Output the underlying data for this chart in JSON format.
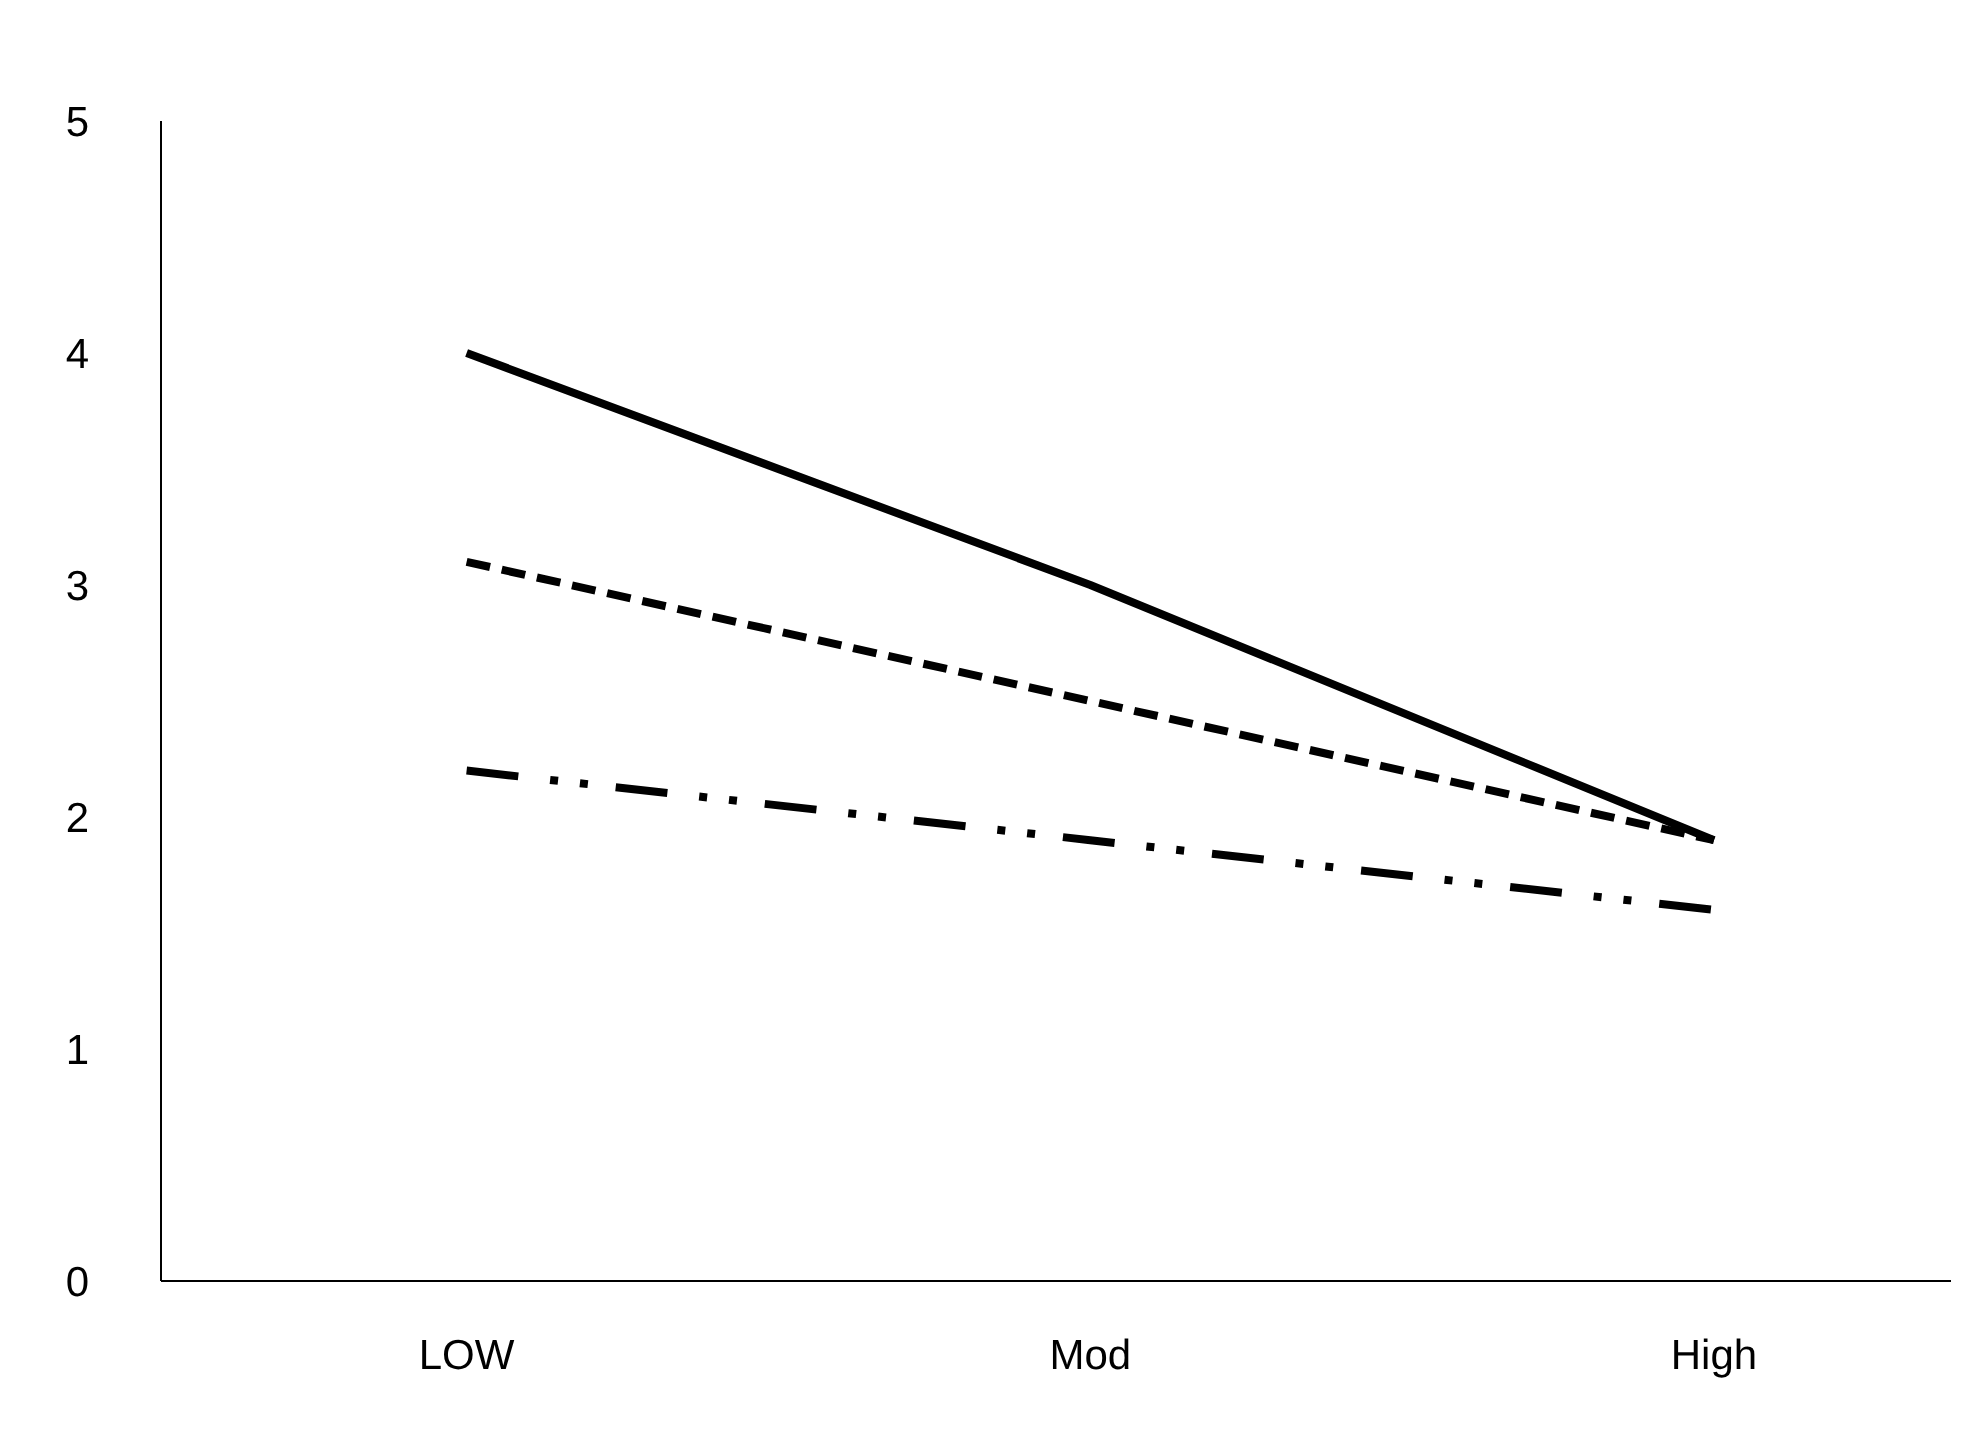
{
  "chart_data": {
    "type": "line",
    "categories": [
      "LOW",
      "Mod",
      "High"
    ],
    "series": [
      {
        "color": "#000000",
        "values": [
          4.0,
          3.0,
          1.9
        ],
        "line_style": "solid"
      },
      {
        "color": "#000000",
        "values": [
          3.1,
          2.5,
          1.9
        ],
        "line_style": "dashed"
      },
      {
        "color": "#000000",
        "values": [
          2.2,
          1.9,
          1.6
        ],
        "line_style": "dashdot"
      }
    ],
    "ylim": [
      0,
      5
    ],
    "yticks": [
      0,
      1,
      2,
      3,
      4,
      5
    ],
    "grid": false
  }
}
